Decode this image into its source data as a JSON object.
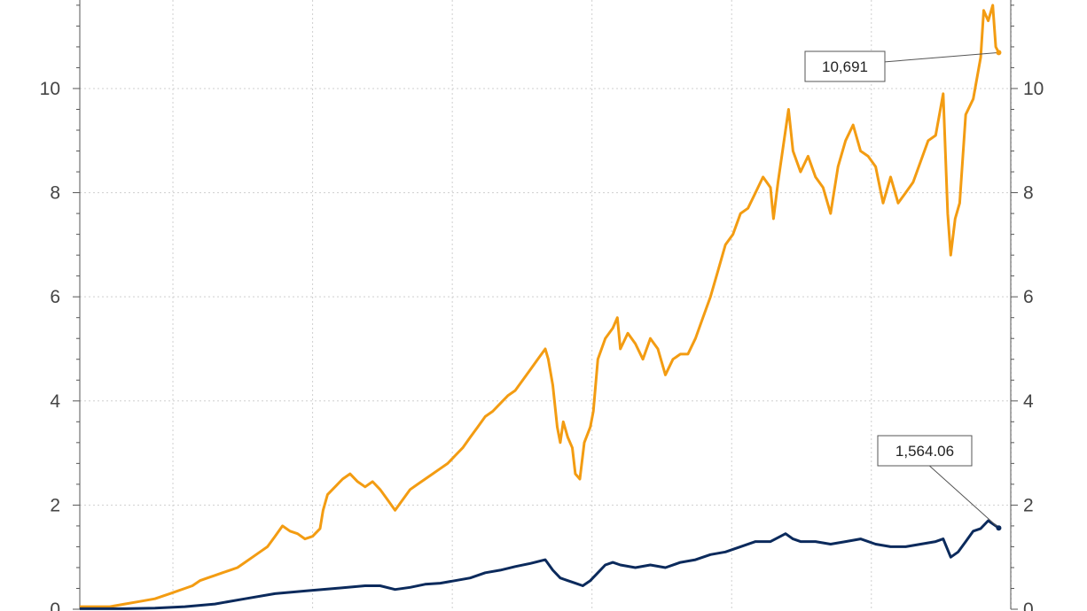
{
  "chart_data": {
    "type": "line",
    "title": "",
    "xlabel": "",
    "ylabel": "",
    "ylim": [
      0,
      11.7
    ],
    "grid": true,
    "dual_y_axis": true,
    "y_ticks": [
      "0",
      "2",
      "4",
      "6",
      "8",
      "10"
    ],
    "x_ticks_unlabeled": [
      0.14,
      0.35,
      0.56,
      0.77,
      0.98,
      1.19,
      1.4
    ],
    "series": [
      {
        "color": "#F39C12",
        "callout": "10,691",
        "points": [
          [
            0,
            0.05
          ],
          [
            0.1,
            0.05
          ],
          [
            0.2,
            0.05
          ],
          [
            0.3,
            0.1
          ],
          [
            0.4,
            0.15
          ],
          [
            0.5,
            0.2
          ],
          [
            0.55,
            0.25
          ],
          [
            0.6,
            0.3
          ],
          [
            0.65,
            0.35
          ],
          [
            0.7,
            0.4
          ],
          [
            0.75,
            0.45
          ],
          [
            0.8,
            0.55
          ],
          [
            0.85,
            0.6
          ],
          [
            0.9,
            0.65
          ],
          [
            0.95,
            0.7
          ],
          [
            1.0,
            0.75
          ],
          [
            1.05,
            0.8
          ],
          [
            1.1,
            0.9
          ],
          [
            1.15,
            1.0
          ],
          [
            1.2,
            1.1
          ],
          [
            1.25,
            1.2
          ],
          [
            1.3,
            1.4
          ],
          [
            1.35,
            1.6
          ],
          [
            1.4,
            1.5
          ],
          [
            1.45,
            1.45
          ],
          [
            1.5,
            1.35
          ],
          [
            1.55,
            1.4
          ],
          [
            1.6,
            1.55
          ],
          [
            1.62,
            1.9
          ],
          [
            1.65,
            2.2
          ],
          [
            1.7,
            2.35
          ],
          [
            1.75,
            2.5
          ],
          [
            1.8,
            2.6
          ],
          [
            1.85,
            2.45
          ],
          [
            1.9,
            2.35
          ],
          [
            1.95,
            2.45
          ],
          [
            2.0,
            2.3
          ],
          [
            2.05,
            2.1
          ],
          [
            2.1,
            1.9
          ],
          [
            2.15,
            2.1
          ],
          [
            2.2,
            2.3
          ],
          [
            2.25,
            2.4
          ],
          [
            2.3,
            2.5
          ],
          [
            2.35,
            2.6
          ],
          [
            2.4,
            2.7
          ],
          [
            2.45,
            2.8
          ],
          [
            2.5,
            2.95
          ],
          [
            2.55,
            3.1
          ],
          [
            2.6,
            3.3
          ],
          [
            2.65,
            3.5
          ],
          [
            2.7,
            3.7
          ],
          [
            2.75,
            3.8
          ],
          [
            2.8,
            3.95
          ],
          [
            2.85,
            4.1
          ],
          [
            2.9,
            4.2
          ],
          [
            2.95,
            4.4
          ],
          [
            3.0,
            4.6
          ],
          [
            3.05,
            4.8
          ],
          [
            3.1,
            5.0
          ],
          [
            3.12,
            4.8
          ],
          [
            3.15,
            4.3
          ],
          [
            3.18,
            3.5
          ],
          [
            3.2,
            3.2
          ],
          [
            3.22,
            3.6
          ],
          [
            3.25,
            3.3
          ],
          [
            3.28,
            3.1
          ],
          [
            3.3,
            2.6
          ],
          [
            3.33,
            2.5
          ],
          [
            3.36,
            3.2
          ],
          [
            3.4,
            3.5
          ],
          [
            3.42,
            3.8
          ],
          [
            3.45,
            4.8
          ],
          [
            3.5,
            5.2
          ],
          [
            3.55,
            5.4
          ],
          [
            3.58,
            5.6
          ],
          [
            3.6,
            5.0
          ],
          [
            3.65,
            5.3
          ],
          [
            3.7,
            5.1
          ],
          [
            3.75,
            4.8
          ],
          [
            3.8,
            5.2
          ],
          [
            3.85,
            5.0
          ],
          [
            3.9,
            4.5
          ],
          [
            3.95,
            4.8
          ],
          [
            4.0,
            4.9
          ],
          [
            4.05,
            4.9
          ],
          [
            4.1,
            5.2
          ],
          [
            4.15,
            5.6
          ],
          [
            4.2,
            6.0
          ],
          [
            4.25,
            6.5
          ],
          [
            4.3,
            7.0
          ],
          [
            4.35,
            7.2
          ],
          [
            4.4,
            7.6
          ],
          [
            4.45,
            7.7
          ],
          [
            4.5,
            8.0
          ],
          [
            4.55,
            8.3
          ],
          [
            4.6,
            8.1
          ],
          [
            4.62,
            7.5
          ],
          [
            4.65,
            8.2
          ],
          [
            4.7,
            9.2
          ],
          [
            4.72,
            9.6
          ],
          [
            4.75,
            8.8
          ],
          [
            4.8,
            8.4
          ],
          [
            4.85,
            8.7
          ],
          [
            4.9,
            8.3
          ],
          [
            4.95,
            8.1
          ],
          [
            5.0,
            7.6
          ],
          [
            5.05,
            8.5
          ],
          [
            5.1,
            9.0
          ],
          [
            5.15,
            9.3
          ],
          [
            5.2,
            8.8
          ],
          [
            5.25,
            8.7
          ],
          [
            5.3,
            8.5
          ],
          [
            5.35,
            7.8
          ],
          [
            5.4,
            8.3
          ],
          [
            5.45,
            7.8
          ],
          [
            5.5,
            8.0
          ],
          [
            5.55,
            8.2
          ],
          [
            5.6,
            8.6
          ],
          [
            5.65,
            9.0
          ],
          [
            5.7,
            9.1
          ],
          [
            5.75,
            9.9
          ],
          [
            5.78,
            7.6
          ],
          [
            5.8,
            6.8
          ],
          [
            5.83,
            7.5
          ],
          [
            5.86,
            7.8
          ],
          [
            5.9,
            9.5
          ],
          [
            5.95,
            9.8
          ],
          [
            6.0,
            10.6
          ],
          [
            6.02,
            11.5
          ],
          [
            6.05,
            11.3
          ],
          [
            6.08,
            11.6
          ],
          [
            6.1,
            10.8
          ],
          [
            6.12,
            10.69
          ]
        ]
      },
      {
        "color": "#0B2A5C",
        "callout": "1,564.06",
        "points": [
          [
            0,
            0.01
          ],
          [
            0.3,
            0.01
          ],
          [
            0.5,
            0.02
          ],
          [
            0.7,
            0.05
          ],
          [
            0.9,
            0.1
          ],
          [
            1.1,
            0.2
          ],
          [
            1.3,
            0.3
          ],
          [
            1.5,
            0.35
          ],
          [
            1.7,
            0.4
          ],
          [
            1.9,
            0.45
          ],
          [
            2.0,
            0.45
          ],
          [
            2.1,
            0.38
          ],
          [
            2.2,
            0.42
          ],
          [
            2.3,
            0.48
          ],
          [
            2.4,
            0.5
          ],
          [
            2.5,
            0.55
          ],
          [
            2.6,
            0.6
          ],
          [
            2.7,
            0.7
          ],
          [
            2.8,
            0.75
          ],
          [
            2.9,
            0.82
          ],
          [
            3.0,
            0.88
          ],
          [
            3.1,
            0.95
          ],
          [
            3.15,
            0.75
          ],
          [
            3.2,
            0.6
          ],
          [
            3.25,
            0.55
          ],
          [
            3.3,
            0.5
          ],
          [
            3.35,
            0.45
          ],
          [
            3.4,
            0.55
          ],
          [
            3.45,
            0.7
          ],
          [
            3.5,
            0.85
          ],
          [
            3.55,
            0.9
          ],
          [
            3.6,
            0.85
          ],
          [
            3.7,
            0.8
          ],
          [
            3.8,
            0.85
          ],
          [
            3.9,
            0.8
          ],
          [
            4.0,
            0.9
          ],
          [
            4.1,
            0.95
          ],
          [
            4.2,
            1.05
          ],
          [
            4.3,
            1.1
          ],
          [
            4.4,
            1.2
          ],
          [
            4.5,
            1.3
          ],
          [
            4.6,
            1.3
          ],
          [
            4.7,
            1.45
          ],
          [
            4.75,
            1.35
          ],
          [
            4.8,
            1.3
          ],
          [
            4.9,
            1.3
          ],
          [
            5.0,
            1.25
          ],
          [
            5.1,
            1.3
          ],
          [
            5.2,
            1.35
          ],
          [
            5.3,
            1.25
          ],
          [
            5.4,
            1.2
          ],
          [
            5.5,
            1.2
          ],
          [
            5.6,
            1.25
          ],
          [
            5.7,
            1.3
          ],
          [
            5.75,
            1.35
          ],
          [
            5.8,
            1.0
          ],
          [
            5.85,
            1.1
          ],
          [
            5.9,
            1.3
          ],
          [
            5.95,
            1.5
          ],
          [
            6.0,
            1.55
          ],
          [
            6.05,
            1.7
          ],
          [
            6.1,
            1.6
          ],
          [
            6.12,
            1.56
          ]
        ]
      }
    ]
  }
}
